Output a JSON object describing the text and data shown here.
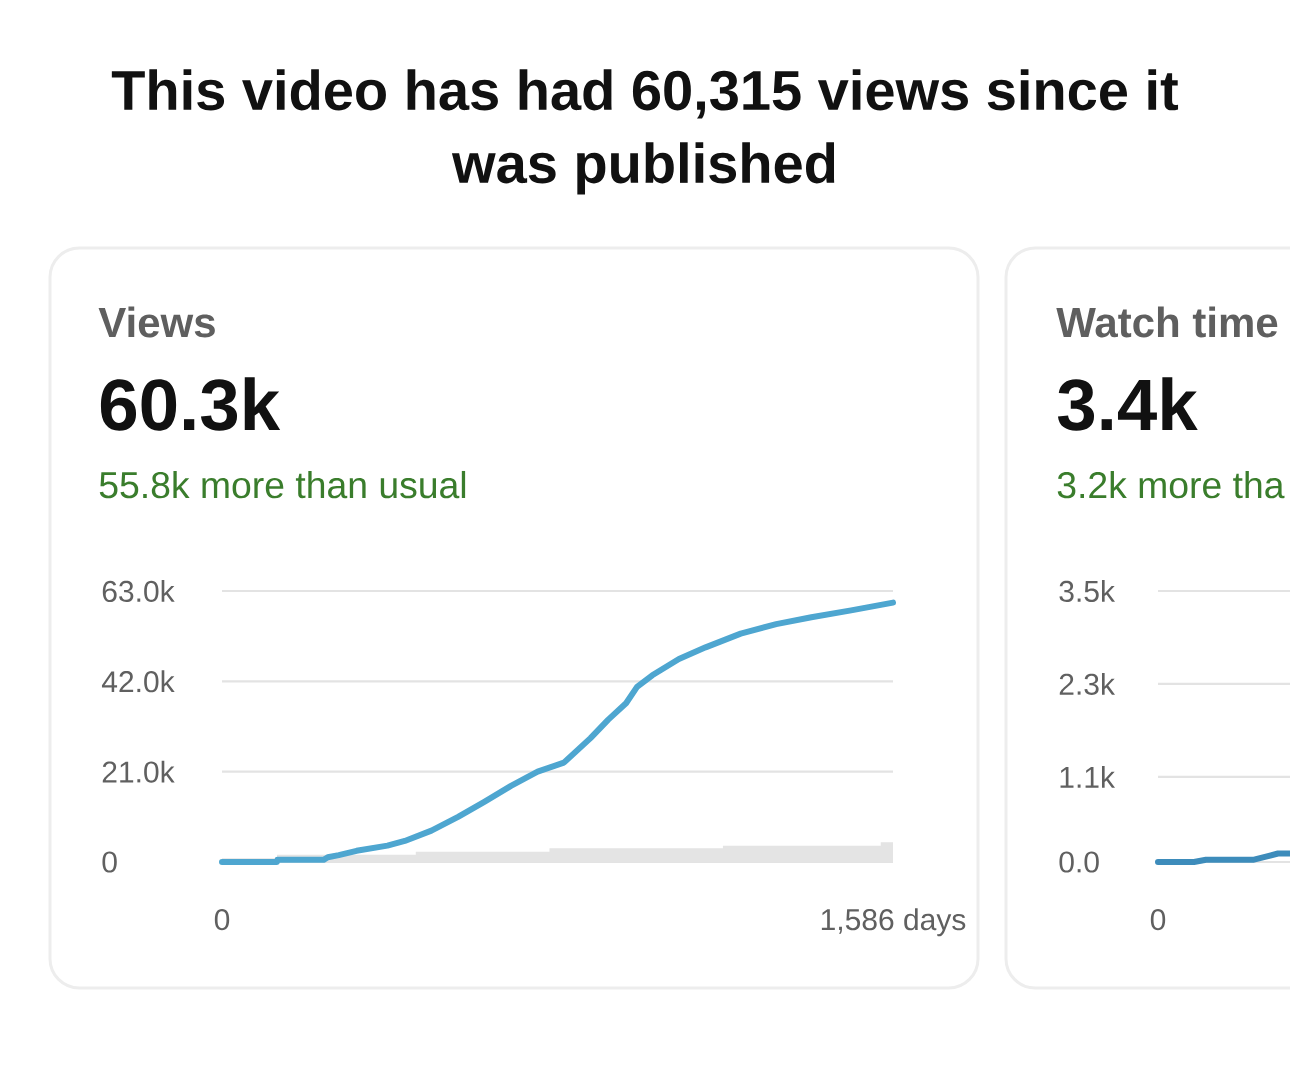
{
  "chart_data": [
    {
      "type": "line",
      "title": "Views",
      "subtitle": "60.3k",
      "annotations": [
        "This video has had 60,315 views since it was published",
        "55.8k more than usual"
      ],
      "xlim": [
        0,
        1586
      ],
      "xticks": [
        0,
        {
          "value": 1586,
          "label": "1,586 days"
        }
      ],
      "ylim": [
        0,
        63000
      ],
      "yticks": [
        0,
        {
          "value": 21000,
          "label": "21.0k"
        },
        {
          "value": 42000,
          "label": "42.0k"
        },
        {
          "value": 63000,
          "label": "63.0k"
        }
      ],
      "grid": "y",
      "series": [
        {
          "type": "area",
          "color": "#e4e4e4",
          "x": [
            0,
            130,
            458,
            774,
            1184,
            1557,
            1586
          ],
          "values": [
            900,
            1700,
            2400,
            3200,
            3800,
            4600,
            4600
          ]
        },
        {
          "color": "#4ea6d0",
          "x": [
            0,
            130,
            131,
            240,
            250,
            276,
            318,
            391,
            432,
            495,
            558,
            620,
            683,
            746,
            808,
            871,
            913,
            955,
            981,
            1017,
            1080,
            1143,
            1226,
            1310,
            1393,
            1487,
            1586
          ],
          "values": [
            0,
            0,
            500,
            500,
            1100,
            1600,
            2600,
            3800,
            4900,
            7300,
            10500,
            14000,
            17700,
            21000,
            23100,
            28800,
            33100,
            36900,
            40700,
            43400,
            47200,
            49900,
            53100,
            55300,
            56900,
            58500,
            60300
          ]
        }
      ]
    },
    {
      "type": "line",
      "title": "Watch time",
      "subtitle": "3.4k",
      "annotations": [
        "3.2k more tha"
      ],
      "categories": [
        "0",
        null,
        null,
        null,
        null,
        null,
        null,
        null,
        null,
        null,
        null,
        null
      ],
      "ylim": [
        0,
        3500
      ],
      "yticks": [
        {
          "value": 0,
          "label": "0.0"
        },
        {
          "value": 1100,
          "label": "1.1k"
        },
        {
          "value": 2300,
          "label": "2.3k"
        },
        {
          "value": 3500,
          "label": "3.5k"
        }
      ],
      "grid": "y",
      "series": [
        {
          "color": "#3d8cbb",
          "values": [
            0,
            0,
            0,
            0,
            30,
            30,
            30,
            30,
            30,
            70,
            110,
            110
          ]
        }
      ]
    }
  ]
}
